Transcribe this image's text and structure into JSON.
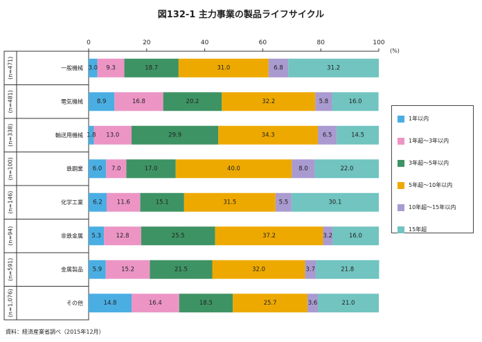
{
  "title": "図132-1 主力事業の製品ライフサイクル",
  "source": "資料：経済産業省調べ（2015年12月）",
  "chart_data": {
    "type": "bar",
    "orientation": "horizontal",
    "stacked": true,
    "unit": "(%)",
    "xlim": [
      0,
      100
    ],
    "xticks": [
      0,
      20,
      40,
      60,
      80,
      100
    ],
    "grid": false,
    "legend_position": "right",
    "categories": [
      {
        "name": "一般機械",
        "n": "(n=471)"
      },
      {
        "name": "電気機械",
        "n": "(n=481)"
      },
      {
        "name": "輸送用機械",
        "n": "(n=338)"
      },
      {
        "name": "鉄鋼業",
        "n": "(n=100)"
      },
      {
        "name": "化学工業",
        "n": "(n=146)"
      },
      {
        "name": "非鉄金属",
        "n": "(n=94)"
      },
      {
        "name": "金属製品",
        "n": "(n=591)"
      },
      {
        "name": "その他",
        "n": "(n=1,076)"
      }
    ],
    "series": [
      {
        "name": "1年以内",
        "color": "#4aaee3",
        "values": [
          3.0,
          8.9,
          1.8,
          6.0,
          6.2,
          5.3,
          5.9,
          14.8
        ],
        "labels": [
          "3.0",
          "8.9",
          "1.8",
          "6.0",
          "6.2",
          "5.3",
          "5.9",
          "14.8"
        ]
      },
      {
        "name": "1年超～3年以内",
        "color": "#ec95c5",
        "values": [
          9.3,
          16.8,
          13.0,
          7.0,
          11.6,
          12.8,
          15.2,
          16.4
        ],
        "labels": [
          "9.3",
          "16.8",
          "13.0",
          "7.0",
          "11.6",
          "12.8",
          "15.2",
          "16.4"
        ]
      },
      {
        "name": "3年超～5年以内",
        "color": "#3e9364",
        "values": [
          18.7,
          20.2,
          29.9,
          17.0,
          15.1,
          25.5,
          21.5,
          18.5
        ],
        "labels": [
          "18.7",
          "20.2",
          "29.9",
          "17.0",
          "15.1",
          "25.5",
          "21.5",
          "18.5"
        ]
      },
      {
        "name": "5年超～10年以内",
        "color": "#eea900",
        "values": [
          31.0,
          32.2,
          34.3,
          40.0,
          31.5,
          37.2,
          32.0,
          25.7
        ],
        "labels": [
          "31.0",
          "32.2",
          "34.3",
          "40.0",
          "31.5",
          "37.2",
          "32.0",
          "25.7"
        ]
      },
      {
        "name": "10年超～15年以内",
        "color": "#a99ad0",
        "values": [
          6.8,
          5.8,
          6.5,
          8.0,
          5.5,
          3.2,
          3.7,
          3.6
        ],
        "labels": [
          "6.8",
          "5.8",
          "6.5",
          "8.0",
          "5.5",
          "3.2",
          "3.7",
          "3.6"
        ]
      },
      {
        "name": "15年超",
        "color": "#71c4c0",
        "values": [
          31.2,
          16.0,
          14.5,
          22.0,
          30.1,
          16.0,
          21.8,
          21.0
        ],
        "labels": [
          "31.2",
          "16.0",
          "14.5",
          "22.0",
          "30.1",
          "16.0",
          "21.8",
          "21.0"
        ]
      }
    ]
  }
}
